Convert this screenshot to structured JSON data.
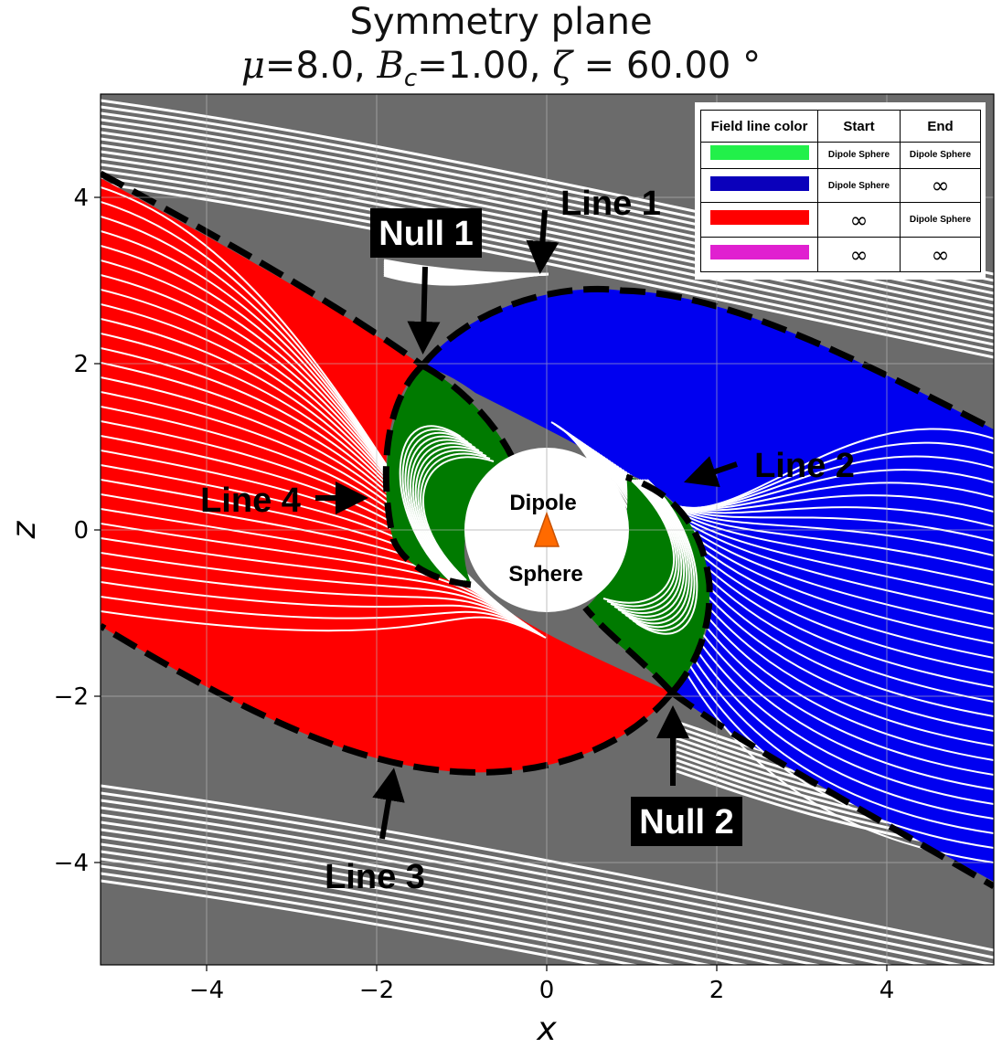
{
  "title": {
    "line1": "Symmetry plane",
    "mu_sym": "μ",
    "mu_val": "=8.0, ",
    "b_sym": "B",
    "b_sub": "c",
    "b_val": "=1.00, ",
    "zeta_sym": "ζ",
    "zeta_val": " = 60.00 °"
  },
  "axes": {
    "xlabel": "x",
    "ylabel": "z",
    "xlim": [
      -5.25,
      5.25
    ],
    "ylim": [
      -5.25,
      5.25
    ],
    "x_ticks": [
      "−4",
      "−2",
      "0",
      "2",
      "4"
    ],
    "y_ticks": [
      "4",
      "2",
      "0",
      "−2",
      "−4"
    ]
  },
  "colors": {
    "background": "#6b6b6b",
    "green": "#007a00",
    "blue": "#0000f0",
    "red": "#ff0000",
    "magenta": "#e020d0",
    "legend_green": "#22f04a",
    "legend_blue": "#0a00bb"
  },
  "legend": {
    "headers": [
      "Field line color",
      "Start",
      "End"
    ],
    "rows": [
      {
        "color_name": "green",
        "start": "Dipole Sphere",
        "end": "Dipole Sphere"
      },
      {
        "color_name": "blue",
        "start": "Dipole Sphere",
        "end": "∞"
      },
      {
        "color_name": "red",
        "start": "∞",
        "end": "Dipole Sphere"
      },
      {
        "color_name": "magenta",
        "start": "∞",
        "end": "∞"
      }
    ]
  },
  "annotations": {
    "null1": "Null 1",
    "null2": "Null 2",
    "line1": "Line 1",
    "line2": "Line 2",
    "line3": "Line 3",
    "line4": "Line 4",
    "sphere_top": "Dipole",
    "sphere_bottom": "Sphere"
  }
}
